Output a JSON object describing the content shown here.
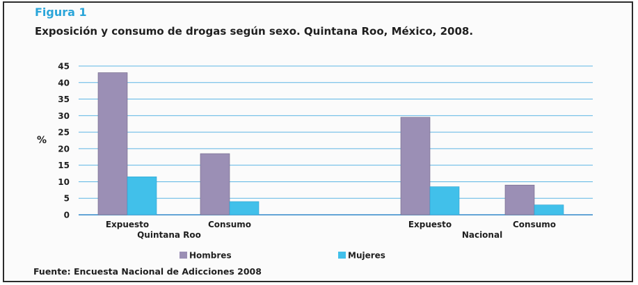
{
  "figure_label": "Figura 1",
  "title": "Exposición y consumo de drogas según sexo. Quintana Roo, México, 2008.",
  "source": "Fuente: Encuesta Nacional de Adicciones 2008",
  "chart_data": {
    "type": "bar",
    "ylabel": "%",
    "ylim": [
      0,
      45
    ],
    "yticks": [
      0,
      5,
      10,
      15,
      20,
      25,
      30,
      35,
      40,
      45
    ],
    "grid": true,
    "groups": [
      "Quintana Roo",
      "Nacional"
    ],
    "categories": [
      "Expuesto",
      "Consumo",
      "Expuesto",
      "Consumo"
    ],
    "category_group": [
      0,
      0,
      1,
      1
    ],
    "series": [
      {
        "name": "Hombres",
        "color": "#9b8fb5",
        "values": [
          43,
          18.5,
          29.5,
          9
        ]
      },
      {
        "name": "Mujeres",
        "color": "#41c0ea",
        "values": [
          11.5,
          4,
          8.5,
          3
        ]
      }
    ],
    "legend_position": "bottom"
  }
}
